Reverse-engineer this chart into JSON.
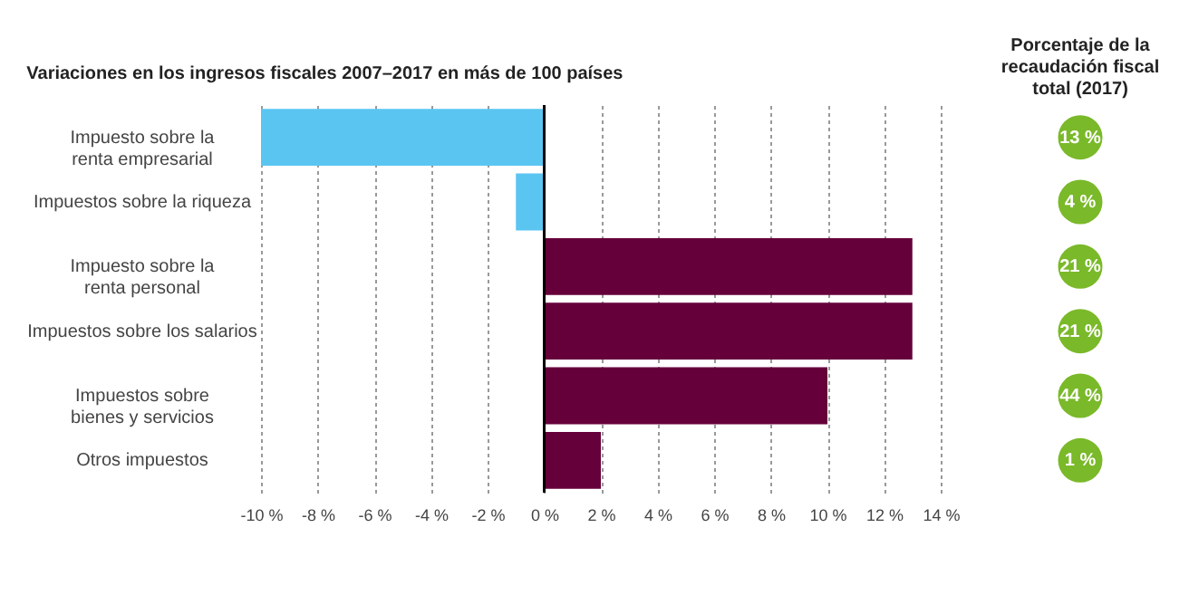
{
  "chart_data": [
    {
      "type": "bar",
      "orientation": "horizontal",
      "title": "Variaciones en los ingresos fiscales 2007–2017 en más de 100 países",
      "categories": [
        "Impuesto sobre la\nrenta empresarial",
        "Impuestos sobre la riqueza",
        "Impuesto sobre la\nrenta personal",
        "Impuestos sobre los salarios",
        "Impuestos sobre\nbienes y servicios",
        "Otros impuestos"
      ],
      "values": [
        -10,
        -1,
        13,
        13,
        10,
        2
      ],
      "colors": [
        "#5bc5f2",
        "#5bc5f2",
        "#65003b",
        "#65003b",
        "#65003b",
        "#65003b"
      ],
      "xlim": [
        -10,
        14
      ],
      "xticks": [
        {
          "value": -10,
          "label": "-10 %"
        },
        {
          "value": -8,
          "label": "-8 %"
        },
        {
          "value": -6,
          "label": "-6 %"
        },
        {
          "value": -4,
          "label": "-4 %"
        },
        {
          "value": -2,
          "label": "-2 %"
        },
        {
          "value": 0,
          "label": "0 %"
        },
        {
          "value": 2,
          "label": "2 %"
        },
        {
          "value": 4,
          "label": "4 %"
        },
        {
          "value": 6,
          "label": "6 %"
        },
        {
          "value": 8,
          "label": "8 %"
        },
        {
          "value": 10,
          "label": "10 %"
        },
        {
          "value": 12,
          "label": "12 %"
        },
        {
          "value": 14,
          "label": "14 %"
        }
      ],
      "grid": "x"
    },
    {
      "type": "other",
      "title": "Porcentaje de la\nrecaudación fiscal\ntotal (2017)",
      "categories": [
        null,
        null,
        null,
        null,
        null,
        null
      ],
      "values": [
        13,
        4,
        21,
        21,
        44,
        1
      ],
      "value_labels": [
        "13 %",
        "4 %",
        "21 %",
        "21 %",
        "44 %",
        "1 %"
      ],
      "color": "#7ab929"
    }
  ]
}
